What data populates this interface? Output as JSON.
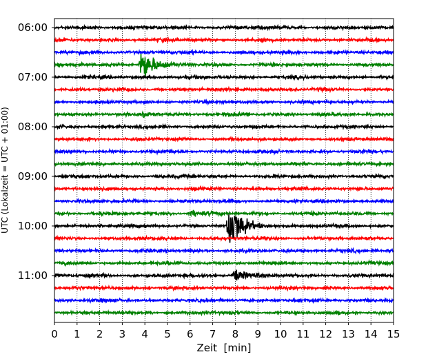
{
  "chart_data": {
    "type": "line",
    "xlabel": "Zeit  [min]",
    "ylabel": "UTC (Lokalzeit = UTC + 01:00)",
    "xlim": [
      0,
      15
    ],
    "x_ticks": [
      "0",
      "1",
      "2",
      "3",
      "4",
      "5",
      "6",
      "7",
      "8",
      "9",
      "10",
      "11",
      "12",
      "13",
      "14",
      "15"
    ],
    "y_tick_labels": [
      "06:00",
      "07:00",
      "08:00",
      "09:00",
      "10:00",
      "11:00"
    ],
    "grid": "vertical dotted",
    "trace_colors": [
      "#000000",
      "#ff0000",
      "#0000ff",
      "#008000"
    ],
    "trace_count": 24,
    "trace_interval_minutes": 15,
    "events": [
      {
        "trace": 3,
        "minute": 3.8,
        "amplitude": 9,
        "color_index": 2
      },
      {
        "trace": 7,
        "minute": 3.9,
        "amplitude": 1.2,
        "color_index": 0
      },
      {
        "trace": 15,
        "minute": 6.0,
        "amplitude": 1.3,
        "color_index": 3
      },
      {
        "trace": 16,
        "minute": 7.7,
        "amplitude": 14,
        "color_index": 1
      },
      {
        "trace": 20,
        "minute": 7.9,
        "amplitude": 3,
        "color_index": 0
      }
    ]
  }
}
